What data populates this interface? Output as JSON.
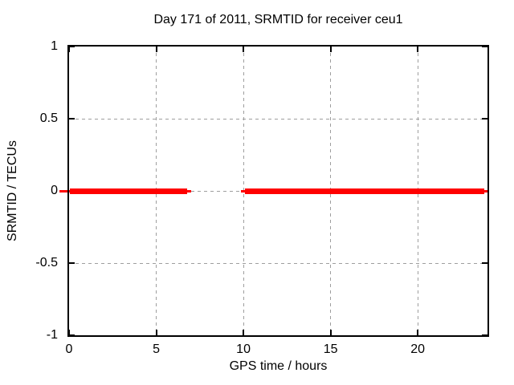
{
  "chart_data": {
    "type": "line",
    "title": "Day 171 of 2011, SRMTID for receiver ceu1",
    "xlabel": "GPS time / hours",
    "ylabel": "SRMTID / TECUs",
    "xlim": [
      0,
      24
    ],
    "ylim": [
      -1,
      1
    ],
    "xticks": [
      0,
      5,
      10,
      15,
      20
    ],
    "xtick_labels": [
      "0",
      "5",
      "10",
      "15",
      "20"
    ],
    "yticks": [
      1,
      0.5,
      0,
      -0.5,
      -1
    ],
    "ytick_labels": [
      "1",
      "0.5",
      "0",
      "-0.5",
      "-1"
    ],
    "grid": true,
    "grid_style": "dashed",
    "legend": "none",
    "grid_color": "#9e9e9e",
    "border_color": "#000000",
    "background_color": "#ffffff",
    "text_color": "#000000",
    "series": [
      {
        "name": "SRMTID",
        "color": "#ff0000",
        "value_summary": "SRMTID is 0 TECUs wherever data exists; data present from 0 to ~6.9 hours and from ~10.0 to 24 hours, with a gap between ~6.9 and ~10.0 hours",
        "segments": [
          {
            "x1": -0.55,
            "x2": 0.05,
            "y": 0,
            "weight": "thin"
          },
          {
            "x1": 0.05,
            "x2": 6.75,
            "y": 0,
            "weight": "thick"
          },
          {
            "x1": 6.75,
            "x2": 7.0,
            "y": 0,
            "weight": "thin"
          },
          {
            "x1": 9.85,
            "x2": 10.1,
            "y": 0,
            "weight": "thin"
          },
          {
            "x1": 10.1,
            "x2": 23.8,
            "y": 0,
            "weight": "thick"
          },
          {
            "x1": 23.8,
            "x2": 24.1,
            "y": 0,
            "weight": "thin"
          }
        ]
      }
    ]
  }
}
